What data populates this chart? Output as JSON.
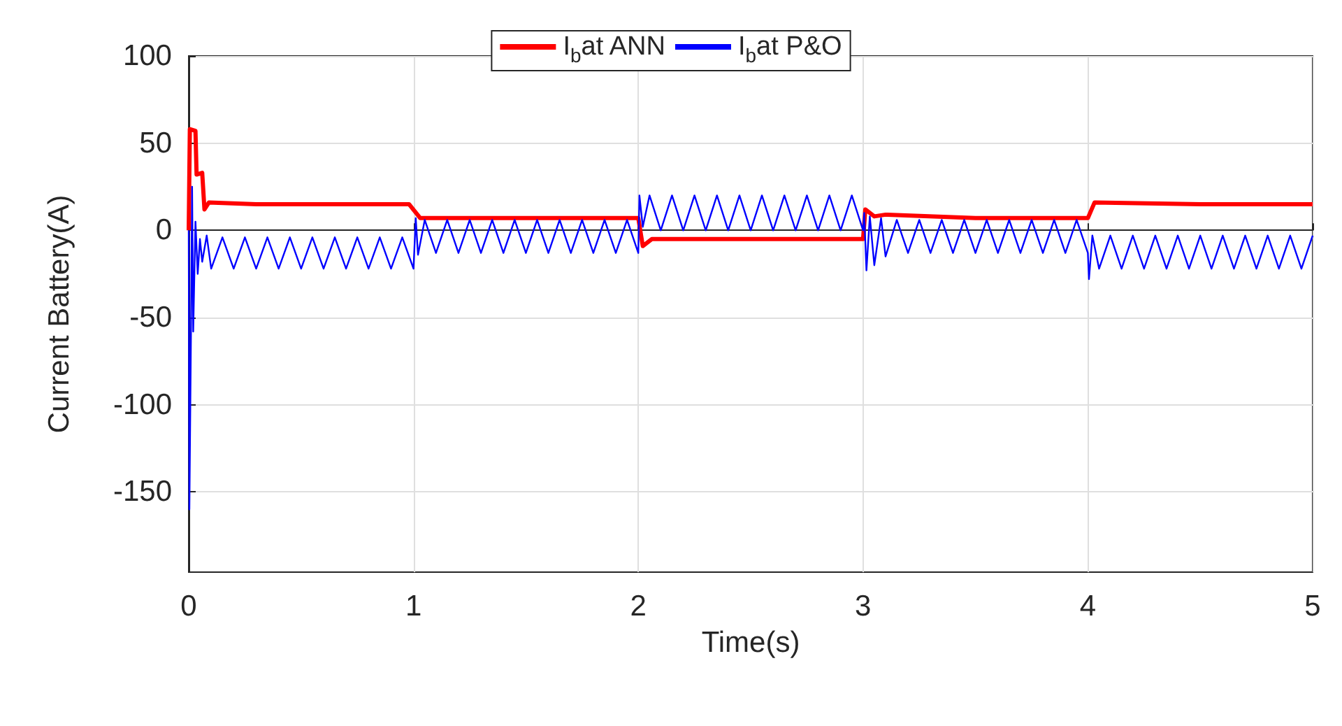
{
  "chart_data": {
    "type": "line",
    "xlabel": "Time(s)",
    "ylabel": "Current Battery(A)",
    "xlim": [
      0,
      5
    ],
    "xticks": [
      0,
      1,
      2,
      3,
      4,
      5
    ],
    "ylim": [
      -196,
      100
    ],
    "yticks": [
      -150,
      -100,
      -50,
      0,
      50,
      100
    ],
    "grid": true,
    "legend": "top",
    "line_style": "solid",
    "marker": "none",
    "series": [
      {
        "name": "I$_{b}$at ANN",
        "color": "#ff0000",
        "x": [
          0,
          0.005,
          0.03,
          0.035,
          0.06,
          0.07,
          0.09,
          0.3,
          0.6,
          0.98,
          1.03,
          1.5,
          2.0,
          2.02,
          2.06,
          2.5,
          3.0,
          3.01,
          3.05,
          3.1,
          3.5,
          4.0,
          4.03,
          4.5,
          5.0
        ],
        "values": [
          0,
          58,
          57,
          32,
          33,
          12,
          16,
          15,
          15,
          15,
          7,
          7,
          7,
          -9,
          -5,
          -5,
          -5,
          12,
          8,
          9,
          7,
          7,
          16,
          15,
          15
        ]
      },
      {
        "name": "I$_{b}$at P&O",
        "color": "#0000ff",
        "x": [
          0,
          0.003,
          0.01,
          0.015,
          0.02,
          0.03,
          0.04,
          0.05,
          0.06,
          0.08,
          0.1,
          0.15,
          0.2,
          0.25,
          0.3,
          0.35,
          0.4,
          0.45,
          0.5,
          0.55,
          0.6,
          0.65,
          0.7,
          0.75,
          0.8,
          0.85,
          0.9,
          0.95,
          1.0,
          1.01,
          1.02,
          1.05,
          1.1,
          1.15,
          1.2,
          1.25,
          1.3,
          1.35,
          1.4,
          1.45,
          1.5,
          1.55,
          1.6,
          1.65,
          1.7,
          1.75,
          1.8,
          1.85,
          1.9,
          1.95,
          2.0,
          2.005,
          2.02,
          2.05,
          2.1,
          2.15,
          2.2,
          2.25,
          2.3,
          2.35,
          2.4,
          2.45,
          2.5,
          2.55,
          2.6,
          2.65,
          2.7,
          2.75,
          2.8,
          2.85,
          2.9,
          2.95,
          3.0,
          3.005,
          3.015,
          3.03,
          3.05,
          3.08,
          3.1,
          3.15,
          3.2,
          3.25,
          3.3,
          3.35,
          3.4,
          3.45,
          3.5,
          3.55,
          3.6,
          3.65,
          3.7,
          3.75,
          3.8,
          3.85,
          3.9,
          3.95,
          4.0,
          4.005,
          4.02,
          4.05,
          4.1,
          4.15,
          4.2,
          4.25,
          4.3,
          4.35,
          4.4,
          4.45,
          4.5,
          4.55,
          4.6,
          4.65,
          4.7,
          4.75,
          4.8,
          4.85,
          4.9,
          4.95,
          5.0
        ],
        "values": [
          0,
          -160,
          -60,
          25,
          -58,
          5,
          -25,
          -5,
          -18,
          -3,
          -22,
          -4,
          -22,
          -4,
          -22,
          -4,
          -22,
          -4,
          -22,
          -4,
          -22,
          -4,
          -22,
          -4,
          -22,
          -4,
          -22,
          -4,
          -22,
          7,
          -14,
          6,
          -13,
          6,
          -13,
          6,
          -13,
          6,
          -13,
          6,
          -13,
          6,
          -13,
          6,
          -13,
          6,
          -13,
          6,
          -13,
          6,
          -13,
          20,
          2,
          20,
          0,
          20,
          0,
          20,
          0,
          20,
          0,
          20,
          0,
          20,
          0,
          20,
          0,
          20,
          0,
          20,
          0,
          20,
          0,
          10,
          -23,
          8,
          -20,
          7,
          -15,
          6,
          -13,
          6,
          -13,
          6,
          -13,
          6,
          -13,
          6,
          -13,
          6,
          -13,
          6,
          -13,
          6,
          -13,
          6,
          -13,
          -28,
          -3,
          -22,
          -3,
          -22,
          -3,
          -22,
          -3,
          -22,
          -3,
          -22,
          -3,
          -22,
          -3,
          -22,
          -3,
          -22,
          -3,
          -22,
          -3,
          -22,
          -3
        ]
      }
    ]
  }
}
